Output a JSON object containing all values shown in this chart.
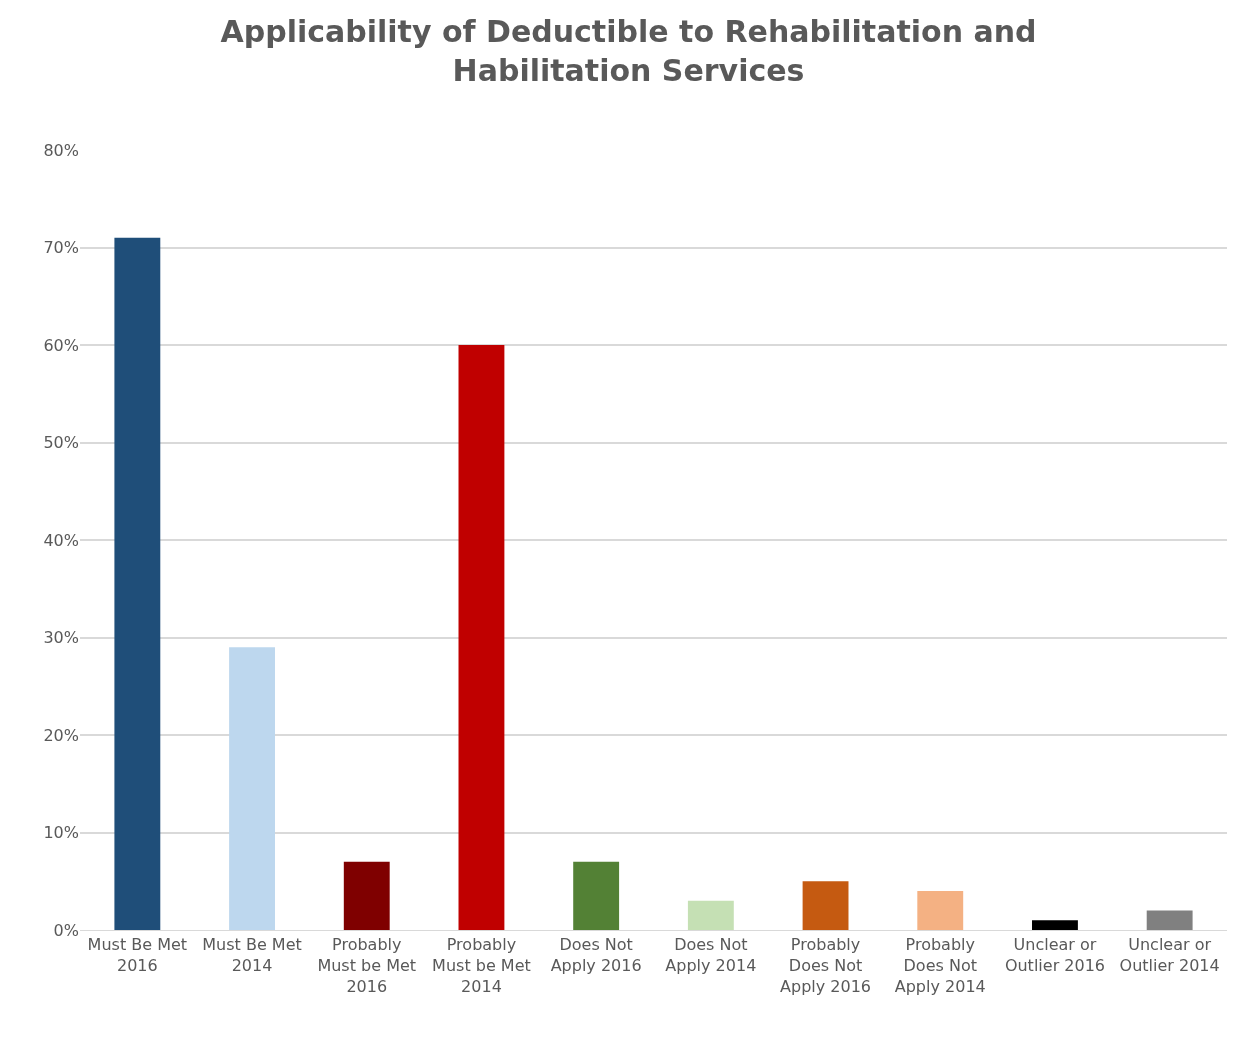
{
  "chart_data": {
    "type": "bar",
    "title": "Applicability of Deductible to Rehabilitation and Habilitation Services",
    "categories": [
      "Must Be Met 2016",
      "Must Be Met 2014",
      "Probably Must be Met 2016",
      "Probably Must be Met 2014",
      "Does Not Apply 2016",
      "Does Not Apply 2014",
      "Probably Does Not Apply 2016",
      "Probably Does Not Apply 2014",
      "Unclear or Outlier 2016",
      "Unclear or Outlier 2014"
    ],
    "values": [
      71,
      29,
      7,
      60,
      7,
      3,
      5,
      4,
      1,
      2
    ],
    "colors": [
      "#1f4e79",
      "#bdd7ee",
      "#7f0000",
      "#c00000",
      "#538135",
      "#c5e0b4",
      "#c55a11",
      "#f4b183",
      "#000000",
      "#808080"
    ],
    "ylim": [
      0,
      80
    ],
    "yticks": [
      {
        "value": 0,
        "label": "0%"
      },
      {
        "value": 10,
        "label": "10%"
      },
      {
        "value": 20,
        "label": "20%"
      },
      {
        "value": 30,
        "label": "30%"
      },
      {
        "value": 40,
        "label": "40%"
      },
      {
        "value": 50,
        "label": "50%"
      },
      {
        "value": 60,
        "label": "60%"
      },
      {
        "value": 70,
        "label": "70%"
      },
      {
        "value": 80,
        "label": "80%"
      }
    ],
    "grid": "y"
  }
}
